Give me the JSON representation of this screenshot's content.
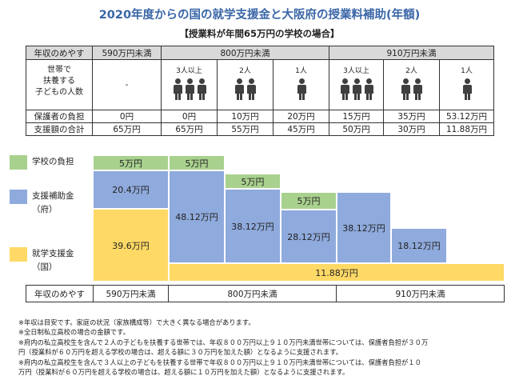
{
  "title": "2020年度からの国の就学支援金と大阪府の授業料補助(年額)",
  "subtitle": "【授業料が年間65万円の学校の場合】",
  "table": {
    "header_label": "年収のめやす",
    "income_groups": [
      "590万円未満",
      "800万円未満",
      "910万円未満"
    ],
    "household_label_lines": [
      "世帯で",
      "扶養する",
      "子どもの人数"
    ],
    "first_col_dash": "-",
    "counts": [
      "3人以上",
      "2人",
      "1人",
      "3人以上",
      "2人",
      "1人"
    ],
    "rows": [
      {
        "label": "保護者の負担",
        "values": [
          "0円",
          "0円",
          "10万円",
          "20万円",
          "15万円",
          "35万円",
          "53.12万円"
        ]
      },
      {
        "label": "支援額の合計",
        "values": [
          "65万円",
          "65万円",
          "55万円",
          "45万円",
          "50万円",
          "30万円",
          "11.88万円"
        ]
      }
    ]
  },
  "legend": {
    "school": "学校の負担",
    "pref_line1": "支援補助金",
    "pref_line2": "（府）",
    "nation_line1": "就学支援金",
    "nation_line2": "（国）",
    "colors": {
      "school": "#a9d18e",
      "pref": "#8faadc",
      "nation": "#ffd966"
    }
  },
  "blocks": {
    "c1_school": "5万円",
    "c1_pref": "20.4万円",
    "c1_nation": "39.6万円",
    "c2_school": "5万円",
    "c2_pref": "48.12万円",
    "c3_school": "5万円",
    "c3_pref": "38.12万円",
    "c4_school": "5万円",
    "c4_pref": "28.12万円",
    "c5_pref": "38.12万円",
    "c6_pref": "18.12万円",
    "nation_wide": "11.88万円"
  },
  "axis": {
    "label": "年収のめやす",
    "groups": [
      "590万円未満",
      "800万円未満",
      "910万円未満"
    ]
  },
  "notes": [
    "※年収は目安です。家庭の状況（家族構成等）で大きく異なる場合があります。",
    "※全日制私立高校の場合の金額です。",
    "※府内の私立高校生を含んで２人の子どもを扶養する世帯では、年収８００万円以上９１０万円未満世帯については、保護者負担が３０万",
    "円（授業料が６０万円を超える学校の場合は、超える額に３０万円を加えた額）となるように支援されます。",
    "※府内の私立高校生を含んで３人以上の子どもを扶養する世帯で年収８００万円以上９１０万円未満世帯については、保護者負担が１０",
    "万円（授業料が６０万円を超える学校の場合は、超える額に１０万円を加えた額）となるように支援されます。"
  ]
}
